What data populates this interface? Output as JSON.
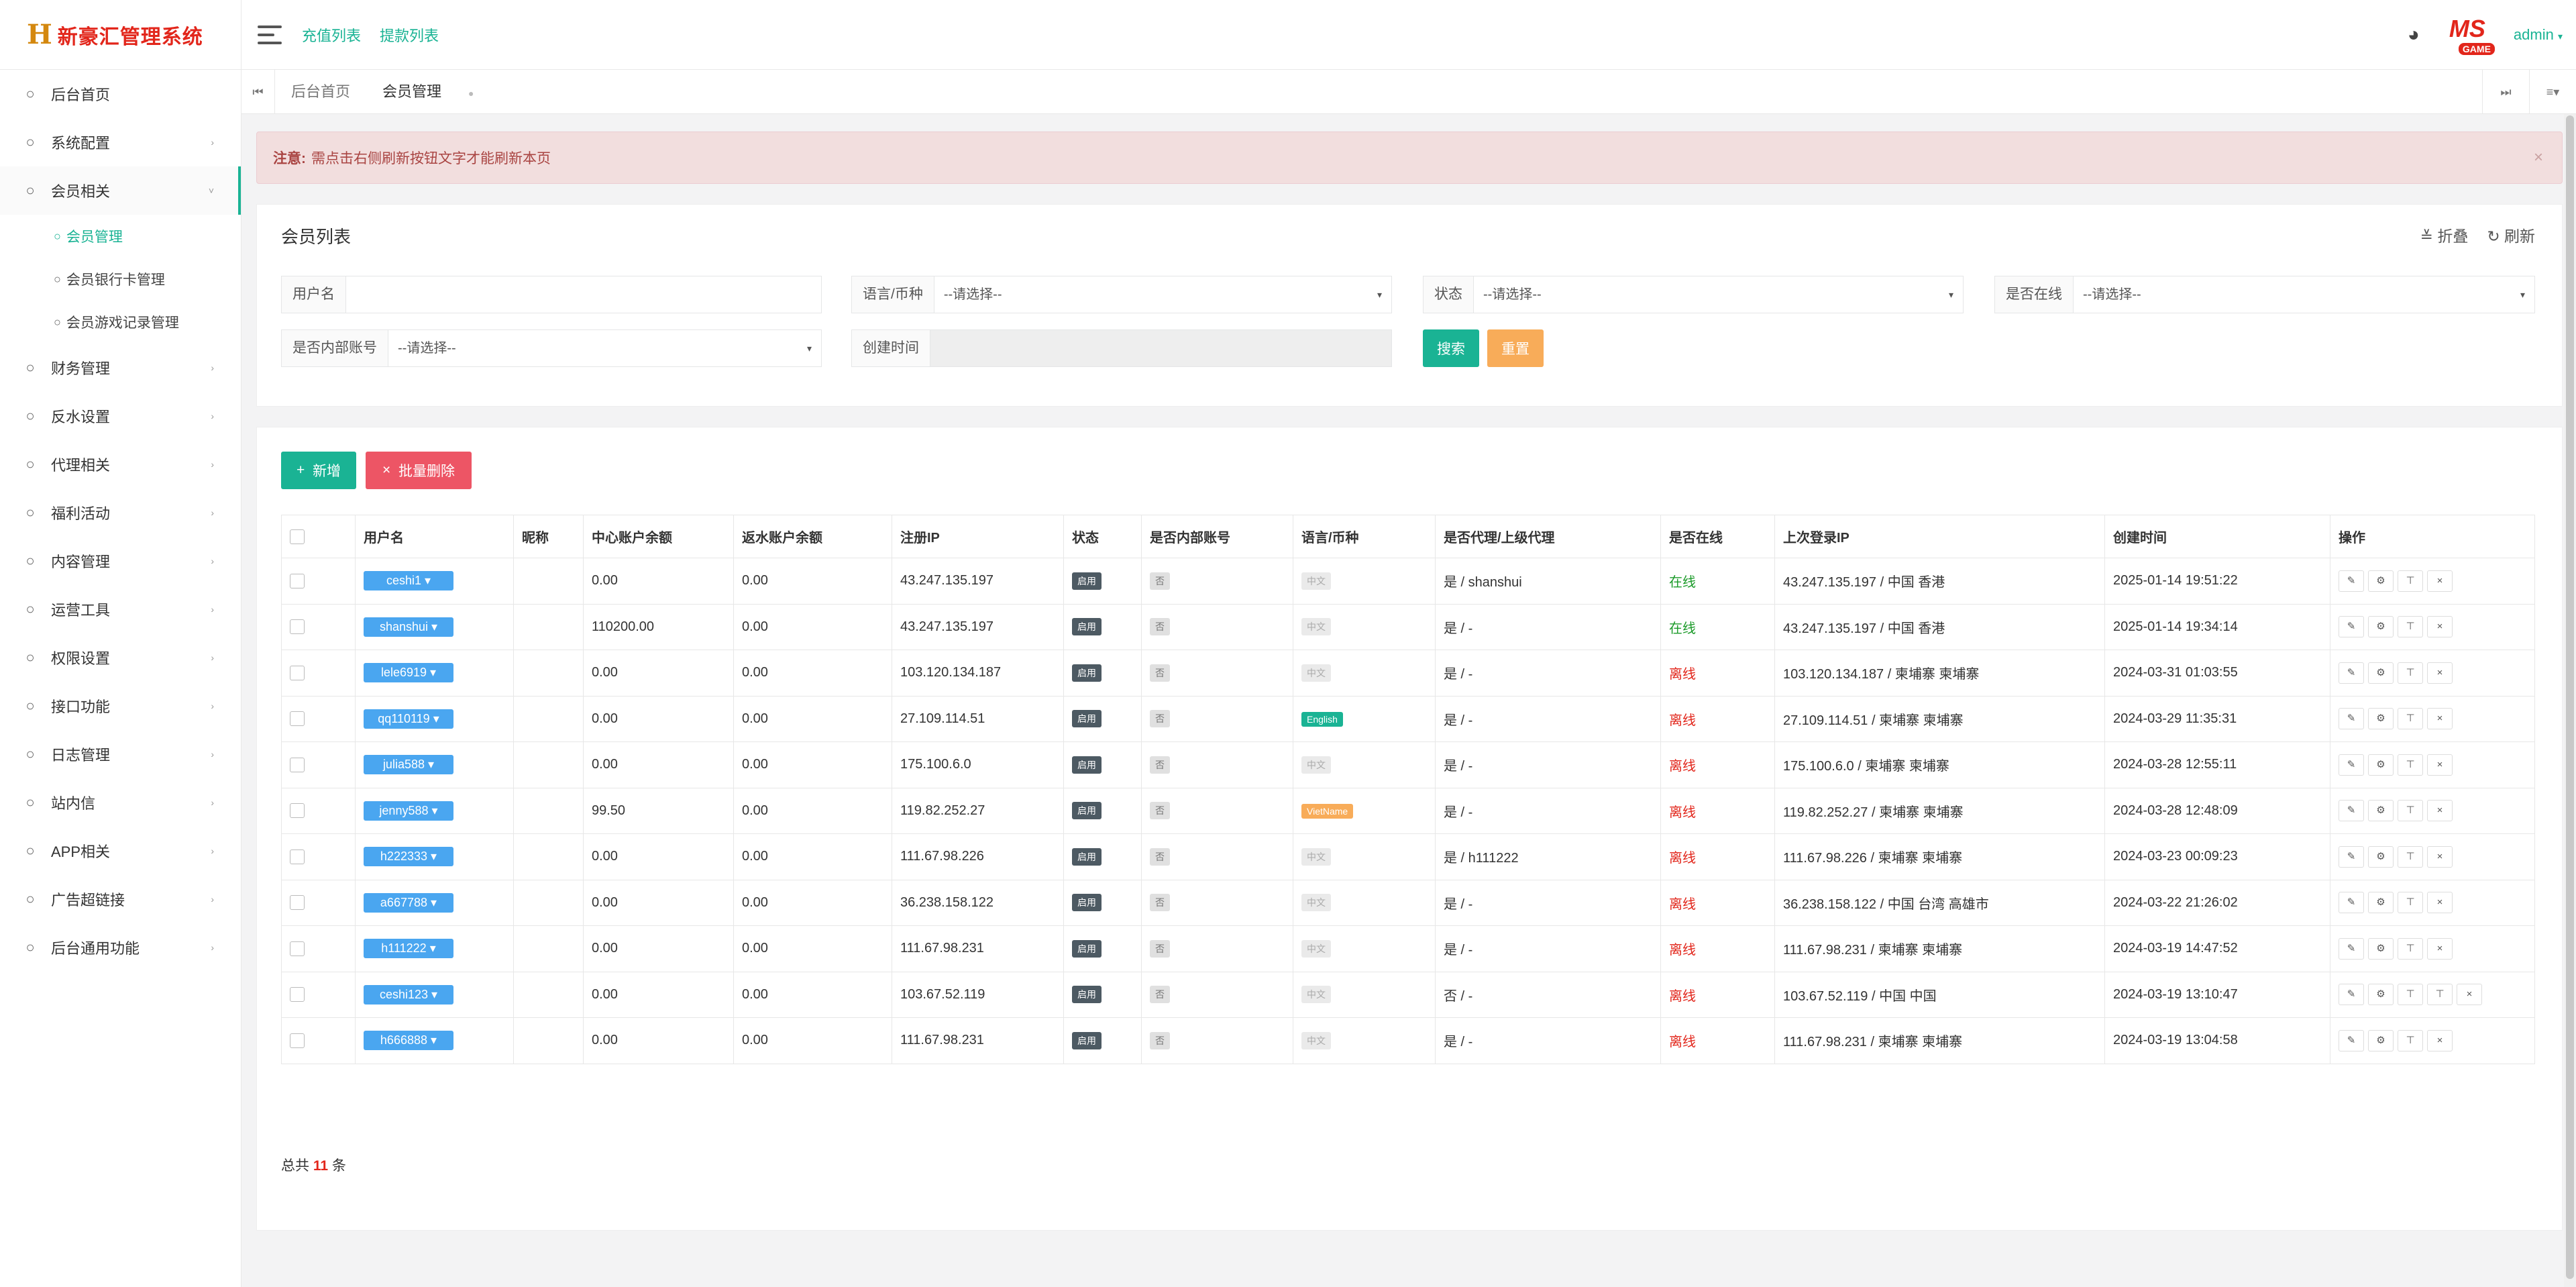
{
  "brand": {
    "logo_glyph": "H",
    "title": "新豪汇管理系统"
  },
  "sidebar": {
    "items": [
      {
        "label": "后台首页",
        "has_arrow": false
      },
      {
        "label": "系统配置",
        "has_arrow": true
      },
      {
        "label": "会员相关",
        "has_arrow": true,
        "open": true
      },
      {
        "label": "财务管理",
        "has_arrow": true
      },
      {
        "label": "反水设置",
        "has_arrow": true
      },
      {
        "label": "代理相关",
        "has_arrow": true
      },
      {
        "label": "福利活动",
        "has_arrow": true
      },
      {
        "label": "内容管理",
        "has_arrow": true
      },
      {
        "label": "运营工具",
        "has_arrow": true
      },
      {
        "label": "权限设置",
        "has_arrow": true
      },
      {
        "label": "接口功能",
        "has_arrow": true
      },
      {
        "label": "日志管理",
        "has_arrow": true
      },
      {
        "label": "站内信",
        "has_arrow": true
      },
      {
        "label": "APP相关",
        "has_arrow": true
      },
      {
        "label": "广告超链接",
        "has_arrow": true
      },
      {
        "label": "后台通用功能",
        "has_arrow": true
      }
    ],
    "sub_items": [
      {
        "label": "会员管理",
        "active": true
      },
      {
        "label": "会员银行卡管理",
        "active": false
      },
      {
        "label": "会员游戏记录管理",
        "active": false
      }
    ]
  },
  "topbar": {
    "links": [
      "充值列表",
      "提款列表"
    ],
    "logo_text": "MS",
    "logo_sub": "GAME",
    "user": "admin"
  },
  "tabs": [
    {
      "label": "后台首页",
      "active": false
    },
    {
      "label": "会员管理",
      "active": true
    }
  ],
  "notice": {
    "prefix": "注意:",
    "text": "需点击右侧刷新按钮文字才能刷新本页"
  },
  "search_panel": {
    "title": "会员列表",
    "collapse_label": "折叠",
    "refresh_label": "刷新",
    "fields": {
      "username": {
        "label": "用户名",
        "value": ""
      },
      "language": {
        "label": "语言/币种",
        "value": "--请选择--"
      },
      "status": {
        "label": "状态",
        "value": "--请选择--"
      },
      "online": {
        "label": "是否在线",
        "value": "--请选择--"
      },
      "internal": {
        "label": "是否内部账号",
        "value": "--请选择--"
      },
      "created": {
        "label": "创建时间",
        "value": ""
      }
    },
    "search_btn": "搜索",
    "reset_btn": "重置"
  },
  "toolbar": {
    "add_btn": "新增",
    "batch_delete_btn": "批量删除"
  },
  "table": {
    "headers": [
      "用户名",
      "昵称",
      "中心账户余额",
      "返水账户余额",
      "注册IP",
      "状态",
      "是否内部账号",
      "语言/币种",
      "是否代理/上级代理",
      "是否在线",
      "上次登录IP",
      "创建时间",
      "操作"
    ],
    "rows": [
      {
        "username": "ceshi1",
        "nickname": "",
        "center": "0.00",
        "rebate": "0.00",
        "reg_ip": "43.247.135.197",
        "status": "启用",
        "internal": "否",
        "lang": "中文",
        "lang_type": "cn",
        "agent": "是 / shanshui",
        "online": "在线",
        "is_online": true,
        "last_ip": "43.247.135.197 / 中国 香港",
        "created": "2025-01-14 19:51:22",
        "ops": 4
      },
      {
        "username": "shanshui",
        "nickname": "",
        "center": "110200.00",
        "rebate": "0.00",
        "reg_ip": "43.247.135.197",
        "status": "启用",
        "internal": "否",
        "lang": "中文",
        "lang_type": "cn",
        "agent": "是 / -",
        "online": "在线",
        "is_online": true,
        "last_ip": "43.247.135.197 / 中国 香港",
        "created": "2025-01-14 19:34:14",
        "ops": 4
      },
      {
        "username": "lele6919",
        "nickname": "",
        "center": "0.00",
        "rebate": "0.00",
        "reg_ip": "103.120.134.187",
        "status": "启用",
        "internal": "否",
        "lang": "中文",
        "lang_type": "cn",
        "agent": "是 / -",
        "online": "离线",
        "is_online": false,
        "last_ip": "103.120.134.187 / 柬埔寨 柬埔寨",
        "created": "2024-03-31 01:03:55",
        "ops": 4
      },
      {
        "username": "qq110119",
        "nickname": "",
        "center": "0.00",
        "rebate": "0.00",
        "reg_ip": "27.109.114.51",
        "status": "启用",
        "internal": "否",
        "lang": "English",
        "lang_type": "en",
        "agent": "是 / -",
        "online": "离线",
        "is_online": false,
        "last_ip": "27.109.114.51 / 柬埔寨 柬埔寨",
        "created": "2024-03-29 11:35:31",
        "ops": 4
      },
      {
        "username": "julia588",
        "nickname": "",
        "center": "0.00",
        "rebate": "0.00",
        "reg_ip": "175.100.6.0",
        "status": "启用",
        "internal": "否",
        "lang": "中文",
        "lang_type": "cn",
        "agent": "是 / -",
        "online": "离线",
        "is_online": false,
        "last_ip": "175.100.6.0 / 柬埔寨 柬埔寨",
        "created": "2024-03-28 12:55:11",
        "ops": 4
      },
      {
        "username": "jenny588",
        "nickname": "",
        "center": "99.50",
        "rebate": "0.00",
        "reg_ip": "119.82.252.27",
        "status": "启用",
        "internal": "否",
        "lang": "VietName",
        "lang_type": "vn",
        "agent": "是 / -",
        "online": "离线",
        "is_online": false,
        "last_ip": "119.82.252.27 / 柬埔寨 柬埔寨",
        "created": "2024-03-28 12:48:09",
        "ops": 4
      },
      {
        "username": "h222333",
        "nickname": "",
        "center": "0.00",
        "rebate": "0.00",
        "reg_ip": "111.67.98.226",
        "status": "启用",
        "internal": "否",
        "lang": "中文",
        "lang_type": "cn",
        "agent": "是 / h111222",
        "online": "离线",
        "is_online": false,
        "last_ip": "111.67.98.226 / 柬埔寨 柬埔寨",
        "created": "2024-03-23 00:09:23",
        "ops": 4
      },
      {
        "username": "a667788",
        "nickname": "",
        "center": "0.00",
        "rebate": "0.00",
        "reg_ip": "36.238.158.122",
        "status": "启用",
        "internal": "否",
        "lang": "中文",
        "lang_type": "cn",
        "agent": "是 / -",
        "online": "离线",
        "is_online": false,
        "last_ip": "36.238.158.122 / 中国 台湾 高雄市",
        "created": "2024-03-22 21:26:02",
        "ops": 4
      },
      {
        "username": "h111222",
        "nickname": "",
        "center": "0.00",
        "rebate": "0.00",
        "reg_ip": "111.67.98.231",
        "status": "启用",
        "internal": "否",
        "lang": "中文",
        "lang_type": "cn",
        "agent": "是 / -",
        "online": "离线",
        "is_online": false,
        "last_ip": "111.67.98.231 / 柬埔寨 柬埔寨",
        "created": "2024-03-19 14:47:52",
        "ops": 4
      },
      {
        "username": "ceshi123",
        "nickname": "",
        "center": "0.00",
        "rebate": "0.00",
        "reg_ip": "103.67.52.119",
        "status": "启用",
        "internal": "否",
        "lang": "中文",
        "lang_type": "cn",
        "agent": "否 / -",
        "online": "离线",
        "is_online": false,
        "last_ip": "103.67.52.119 / 中国 中国",
        "created": "2024-03-19 13:10:47",
        "ops": 5
      },
      {
        "username": "h666888",
        "nickname": "",
        "center": "0.00",
        "rebate": "0.00",
        "reg_ip": "111.67.98.231",
        "status": "启用",
        "internal": "否",
        "lang": "中文",
        "lang_type": "cn",
        "agent": "是 / -",
        "online": "离线",
        "is_online": false,
        "last_ip": "111.67.98.231 / 柬埔寨 柬埔寨",
        "created": "2024-03-19 13:04:58",
        "ops": 4
      }
    ]
  },
  "footer": {
    "total_prefix": "总共",
    "total_count": "11",
    "total_suffix": "条"
  },
  "colors": {
    "accent": "#1ab394",
    "danger": "#ed5565",
    "warning": "#f8ac59",
    "primary": "#4aa6f0",
    "online": "#1c9b2a",
    "offline": "#e2261b"
  }
}
